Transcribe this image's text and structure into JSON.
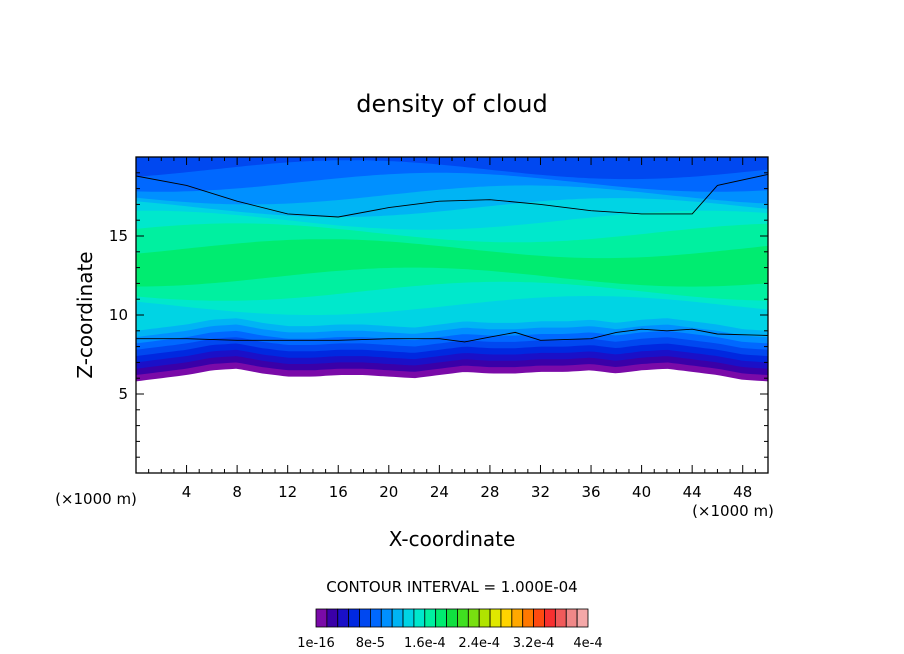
{
  "chart_data": {
    "type": "contour",
    "title": "density of cloud",
    "xlabel": "X-coordinate",
    "ylabel": "Z-coordinate",
    "x_unit_left": "(×1000 m)",
    "x_unit_right": "(×1000 m)",
    "xlim": [
      0,
      50
    ],
    "ylim": [
      0,
      20
    ],
    "x_ticks": [
      "4",
      "8",
      "12",
      "16",
      "20",
      "24",
      "28",
      "32",
      "36",
      "40",
      "44",
      "48"
    ],
    "y_ticks": [
      "5",
      "10",
      "15"
    ],
    "contour_interval_text": "CONTOUR INTERVAL = 1.000E-04",
    "colorbar_labels": [
      "1e-16",
      "8e-5",
      "1.6e-4",
      "2.4e-4",
      "3.2e-4",
      "4e-4"
    ],
    "colorbar_colors": [
      "#7a0aa8",
      "#3a00a8",
      "#1a10c8",
      "#0028e0",
      "#0048f0",
      "#0068ff",
      "#0090ff",
      "#00b4f4",
      "#00d4e4",
      "#00e8cc",
      "#00f0a0",
      "#00ec70",
      "#10e040",
      "#40e020",
      "#78e010",
      "#b0e400",
      "#e0e800",
      "#ffd400",
      "#ffa800",
      "#ff7800",
      "#ff4a10",
      "#f83030",
      "#f05a5a",
      "#f08888",
      "#f4a8a8"
    ],
    "cloud_base_profile": {
      "x": [
        0,
        2,
        4,
        6,
        8,
        10,
        12,
        14,
        16,
        18,
        20,
        22,
        24,
        26,
        28,
        30,
        32,
        34,
        36,
        38,
        40,
        42,
        44,
        46,
        48,
        50
      ],
      "z": [
        5.8,
        6.0,
        6.2,
        6.5,
        6.6,
        6.3,
        6.1,
        6.1,
        6.2,
        6.2,
        6.1,
        6.0,
        6.2,
        6.4,
        6.3,
        6.3,
        6.4,
        6.4,
        6.5,
        6.3,
        6.5,
        6.6,
        6.4,
        6.2,
        5.9,
        5.8
      ]
    },
    "upper_contour_profile": {
      "x": [
        0,
        4,
        8,
        12,
        16,
        20,
        24,
        28,
        32,
        36,
        40,
        44,
        45,
        46,
        50
      ],
      "z": [
        18.8,
        18.2,
        17.2,
        16.4,
        16.2,
        16.8,
        17.2,
        17.3,
        17.0,
        16.6,
        16.4,
        16.4,
        17.3,
        18.2,
        18.9
      ]
    },
    "lower_contour_profile": {
      "x": [
        0,
        4,
        8,
        12,
        16,
        20,
        24,
        26,
        28,
        30,
        32,
        36,
        38,
        40,
        42,
        44,
        46,
        50
      ],
      "z": [
        8.5,
        8.5,
        8.4,
        8.4,
        8.4,
        8.5,
        8.5,
        8.3,
        8.6,
        8.9,
        8.4,
        8.5,
        8.9,
        9.1,
        9.0,
        9.1,
        8.8,
        8.7
      ]
    },
    "bands_z": [
      6.6,
      7.0,
      7.4,
      7.8,
      8.2,
      8.6,
      9.0,
      9.4,
      9.8,
      10.6,
      11.5,
      12.4,
      14.2,
      15.2,
      16.0,
      16.8,
      17.6,
      18.4,
      19.2
    ],
    "band_colors": [
      "#7a0aa8",
      "#3a00a8",
      "#1a10c8",
      "#0028e0",
      "#0048f0",
      "#0068ff",
      "#0090ff",
      "#00b4f4",
      "#00d4e4",
      "#00e8cc",
      "#00f0a0",
      "#00ec70",
      "#00f0a0",
      "#00e8cc",
      "#00d4e4",
      "#00b4f4",
      "#0090ff",
      "#0068ff",
      "#0048f0"
    ],
    "grid": false,
    "legend": "bottom"
  }
}
